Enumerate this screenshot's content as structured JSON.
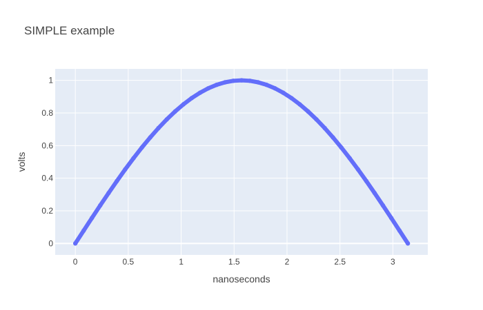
{
  "chart_data": {
    "type": "scatter",
    "title": "SIMPLE example",
    "xlabel": "nanoseconds",
    "ylabel": "volts",
    "xlim": [
      -0.19,
      3.33
    ],
    "ylim": [
      -0.07,
      1.07
    ],
    "xticks": [
      0,
      0.5,
      1,
      1.5,
      2,
      2.5,
      3
    ],
    "xtick_labels": [
      "0",
      "0.5",
      "1",
      "1.5",
      "2",
      "2.5",
      "3"
    ],
    "yticks": [
      0,
      0.2,
      0.4,
      0.6,
      0.8,
      1
    ],
    "ytick_labels": [
      "0",
      "0.2",
      "0.4",
      "0.6",
      "0.8",
      "1"
    ],
    "grid": true,
    "series": [
      {
        "color": "#636efa",
        "mode": "markers",
        "x": [
          0,
          0.0785,
          0.1571,
          0.2356,
          0.3142,
          0.3927,
          0.4712,
          0.5498,
          0.6283,
          0.7069,
          0.7854,
          0.8639,
          0.9425,
          1.021,
          1.0996,
          1.1781,
          1.2566,
          1.3352,
          1.4137,
          1.4923,
          1.5708,
          1.6493,
          1.7279,
          1.8064,
          1.885,
          1.9635,
          2.042,
          2.1206,
          2.1991,
          2.2777,
          2.3562,
          2.4347,
          2.5133,
          2.5918,
          2.6704,
          2.7489,
          2.8274,
          2.906,
          2.9845,
          3.0631,
          3.1416
        ],
        "y": [
          0,
          0.0785,
          0.1564,
          0.2334,
          0.309,
          0.3827,
          0.454,
          0.5225,
          0.5878,
          0.6494,
          0.7071,
          0.7604,
          0.809,
          0.8526,
          0.891,
          0.9239,
          0.9511,
          0.9724,
          0.9877,
          0.9969,
          1,
          0.9969,
          0.9877,
          0.9724,
          0.9511,
          0.9239,
          0.891,
          0.8526,
          0.809,
          0.7604,
          0.7071,
          0.6494,
          0.5878,
          0.5225,
          0.454,
          0.3827,
          0.309,
          0.2334,
          0.1564,
          0.0785,
          0
        ]
      }
    ]
  },
  "colors": {
    "plot_background": "#e5ecf6",
    "grid": "#ffffff",
    "text": "#444444",
    "series": "#636efa"
  }
}
